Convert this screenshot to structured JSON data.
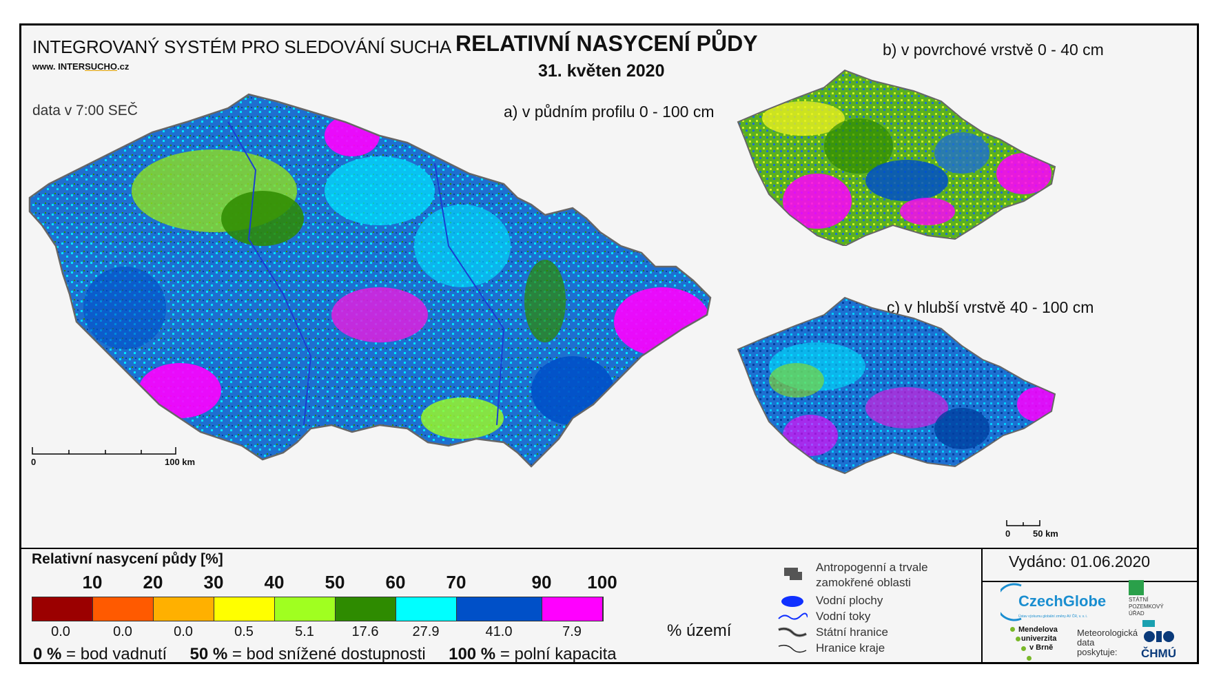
{
  "header": {
    "system_name": "INTEGROVANÝ SYSTÉM PRO SLEDOVÁNÍ SUCHA",
    "web_prefix": "www. INTER",
    "web_mid": "SUCHO",
    "web_suffix": ".cz",
    "data_time": "data v 7:00 SEČ",
    "title": "RELATIVNÍ NASYCENÍ PŮDY",
    "date": "31. květen 2020"
  },
  "maps": {
    "a_label": "a) v půdním profilu 0 - 100 cm",
    "b_label": "b) v povrchové vrstvě 0 - 40 cm",
    "c_label": "c) v hlubší vrstvě 40 - 100 cm"
  },
  "scales": {
    "main_start": "0",
    "main_end": "100 km",
    "small_start": "0",
    "small_end": "50 km"
  },
  "legend": {
    "title": "Relativní nasycení půdy [%]",
    "thresholds": [
      "10",
      "20",
      "30",
      "40",
      "50",
      "60",
      "70",
      "90",
      "100"
    ],
    "classes": [
      {
        "color": "#9b0000",
        "area_pct": "0.0"
      },
      {
        "color": "#ff5a00",
        "area_pct": "0.0"
      },
      {
        "color": "#ffb000",
        "area_pct": "0.0"
      },
      {
        "color": "#ffff00",
        "area_pct": "0.5"
      },
      {
        "color": "#a0ff20",
        "area_pct": "5.1"
      },
      {
        "color": "#2e8b00",
        "area_pct": "17.6"
      },
      {
        "color": "#00ffff",
        "area_pct": "27.9"
      },
      {
        "color": "#0050c8",
        "area_pct": "41.0"
      },
      {
        "color": "#ff00ff",
        "area_pct": "7.9"
      }
    ],
    "area_unit": "% území",
    "def_0_val": "0 %",
    "def_0_txt": "= bod vadnutí",
    "def_50_val": "50 %",
    "def_50_txt": "= bod snížené dostupnosti",
    "def_100_val": "100 %",
    "def_100_txt": "= polní kapacita"
  },
  "symbols": {
    "anthropogenic_1": "Antropogenní a trvale",
    "anthropogenic_2": "zamokřené oblasti",
    "water_bodies": "Vodní plochy",
    "water_courses": "Vodní toky",
    "state_border": "Státní hranice",
    "region_border": "Hranice kraje"
  },
  "footer": {
    "issued": "Vydáno: 01.06.2020",
    "czechglobe": "CzechGlobe",
    "czechglobe_sub": "Ústav výzkumu globální změny AV ČR, v. v. i.",
    "spu": [
      "STÁTNÍ",
      "POZEMKOVÝ",
      "ÚŘAD"
    ],
    "mendel": [
      "Mendelova",
      "univerzita",
      "v Brně"
    ],
    "met_data": [
      "Meteorologická",
      "data",
      "poskytuje:"
    ],
    "chmu": "ČHMÚ"
  }
}
